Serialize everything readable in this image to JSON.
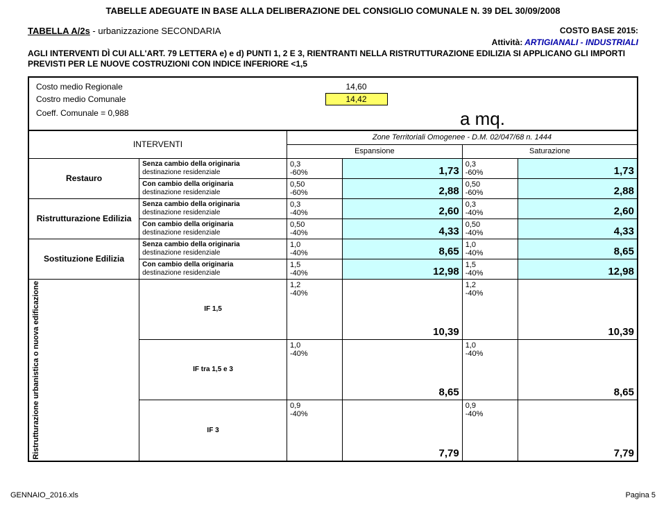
{
  "page": {
    "title": "TABELLE ADEGUATE IN BASE ALLA DELIBERAZIONE DEL CONSIGLIO COMUNALE N. 39 DEL 30/09/2008",
    "table_label": "TABELLA  A/2s",
    "table_desc": " - urbanizzazione SECONDARIA",
    "costo_base": "COSTO BASE 2015:",
    "attivita_label": "Attività:",
    "attivita_value": " ARTIGIANALI - INDUSTRIALI",
    "legal": "AGLI INTERVENTI DÌ CUI ALL'ART. 79 LETTERA e) e d) PUNTI 1, 2 E 3, RIENTRANTI NELLA RISTRUTTURAZIONE EDILIZIA SI APPLICANO GLI IMPORTI PREVISTI PER LE NUOVE COSTRUZIONI CON INDICE INFERIORE <1,5",
    "costo_regionale_label": "Costo medio Regionale",
    "costo_regionale_val": "14,60",
    "costo_comunale_label": "Costro medio Comunale",
    "costo_comunale_val": "14,42",
    "coeff_label": "Coeff. Comunale = 0,988",
    "amq": "a mq.",
    "interventi": "INTERVENTI",
    "zone_hdr": "Zone   Territoriali   Omogenee   -   D.M.  02/047/68  n.  1444",
    "espansione": "Espansione",
    "saturazione": "Saturazione"
  },
  "labels": {
    "restauro": "Restauro",
    "ristrutt": "Ristrutturazione Edilizia",
    "sostit": "Sostituzione Edilizia",
    "vert": "Ristrutturazione urbanistica o nuova edificazione",
    "senza": "Senza cambio della originaria",
    "con": "Con cambio della originaria",
    "dest": "destinazione residenziale",
    "if15": "IF     1,5",
    "iftra": "IF   tra  1,5  e   3",
    "if3": "IF        3"
  },
  "data": {
    "restauro_senza": {
      "coef": "0,3",
      "pct": "-60%",
      "val": "1,73"
    },
    "restauro_con": {
      "coef": "0,50",
      "pct": "-60%",
      "val": "2,88"
    },
    "ristrutt_senza": {
      "coef": "0,3",
      "pct": "-40%",
      "val": "2,60"
    },
    "ristrutt_con": {
      "coef": "0,50",
      "pct": "-40%",
      "val": "4,33"
    },
    "sostit_senza": {
      "coef": "1,0",
      "pct": "-40%",
      "val": "8,65"
    },
    "sostit_con": {
      "coef": "1,5",
      "pct": "-40%",
      "val": "12,98"
    },
    "if15": {
      "coef": "1,2",
      "pct": "-40%",
      "val": "10,39"
    },
    "iftra": {
      "coef": "1,0",
      "pct": "-40%",
      "val": "8,65"
    },
    "if3": {
      "coef": "0,9",
      "pct": "-40%",
      "val": "7,79"
    }
  },
  "footer": {
    "left": "GENNAIO_2016.xls",
    "right": "Pagina 5"
  },
  "colors": {
    "highlight_yellow": "#ffff66",
    "highlight_cyan": "#ccffff",
    "stroke": "#000000",
    "blue_text": "#0000aa"
  }
}
